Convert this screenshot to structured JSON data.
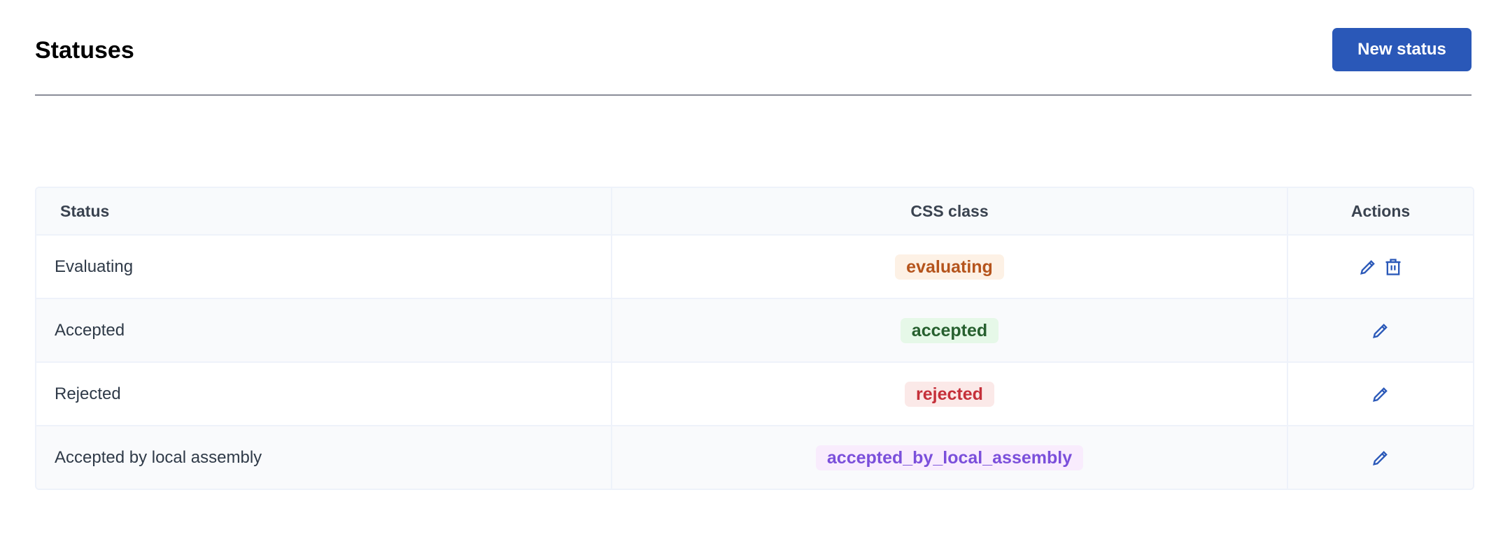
{
  "header": {
    "title": "Statuses",
    "new_button_label": "New status"
  },
  "table": {
    "columns": [
      "Status",
      "CSS class",
      "Actions"
    ],
    "rows": [
      {
        "status": "Evaluating",
        "css_class": "evaluating",
        "badge_bg": "#fdf1e5",
        "badge_fg": "#b5541c",
        "actions": [
          "edit",
          "delete"
        ]
      },
      {
        "status": "Accepted",
        "css_class": "accepted",
        "badge_bg": "#e6f8e8",
        "badge_fg": "#27602f",
        "actions": [
          "edit"
        ]
      },
      {
        "status": "Rejected",
        "css_class": "rejected",
        "badge_bg": "#fbe9e8",
        "badge_fg": "#c5303a",
        "actions": [
          "edit"
        ]
      },
      {
        "status": "Accepted by local assembly",
        "css_class": "accepted_by_local_assembly",
        "badge_bg": "#f9ecfd",
        "badge_fg": "#7b4fdb",
        "actions": [
          "edit"
        ]
      }
    ]
  },
  "colors": {
    "accent": "#2a58b8",
    "icon": "#2a58b8"
  },
  "icons": {
    "edit": "pencil-icon",
    "delete": "trash-icon"
  }
}
